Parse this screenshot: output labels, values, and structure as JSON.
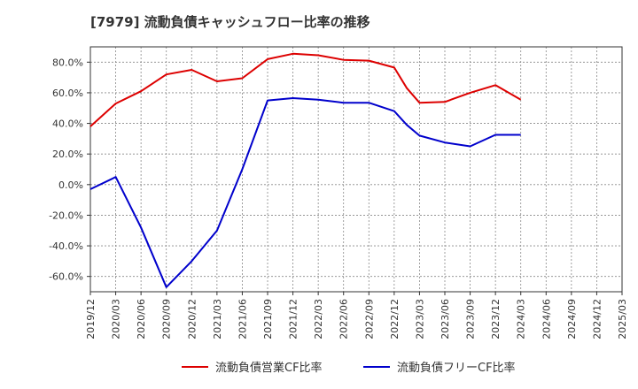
{
  "chart_data": {
    "type": "line",
    "title": "[7979]  流動負債キャッシュフロー比率の推移",
    "x": [
      "2019/12",
      "2020/03",
      "2020/06",
      "2020/09",
      "2020/12",
      "2021/03",
      "2021/06",
      "2021/09",
      "2021/12",
      "2022/03",
      "2022/06",
      "2022/09",
      "2022/12",
      "2023/03",
      "2023/06",
      "2023/09",
      "2023/12",
      "2024/03",
      "2024/06",
      "2024/09",
      "2024/12",
      "2025/03"
    ],
    "ylim": [
      -70,
      90
    ],
    "yticks": [
      -60,
      -40,
      -20,
      0,
      20,
      40,
      60,
      80
    ],
    "ytick_labels": [
      "-60.0%",
      "-40.0%",
      "-20.0%",
      "0.0%",
      "20.0%",
      "40.0%",
      "60.0%",
      "80.0%"
    ],
    "grid": true,
    "legend_position": "bottom",
    "series": [
      {
        "name": "流動負債営業CF比率",
        "color": "#dd0000",
        "values": [
          [
            0,
            38
          ],
          [
            1,
            53
          ],
          [
            2,
            61
          ],
          [
            3,
            72
          ],
          [
            4,
            75
          ],
          [
            5,
            67.5
          ],
          [
            6,
            69.5
          ],
          [
            7,
            82
          ],
          [
            8,
            85.5
          ],
          [
            9,
            84.5
          ],
          [
            10,
            81.5
          ],
          [
            11,
            81
          ],
          [
            12,
            76.5
          ],
          [
            12.5,
            63
          ],
          [
            13,
            53.5
          ],
          [
            14,
            54
          ],
          [
            15,
            60
          ],
          [
            16,
            65
          ],
          [
            17,
            55.5
          ]
        ]
      },
      {
        "name": "流動負債フリーCF比率",
        "color": "#0000cc",
        "values": [
          [
            0,
            -3
          ],
          [
            1,
            5
          ],
          [
            2,
            -28
          ],
          [
            3,
            -67
          ],
          [
            4,
            -50
          ],
          [
            5,
            -30
          ],
          [
            6,
            10
          ],
          [
            7,
            55
          ],
          [
            8,
            56.5
          ],
          [
            9,
            55.5
          ],
          [
            10,
            53.5
          ],
          [
            11,
            53.5
          ],
          [
            12,
            48
          ],
          [
            12.5,
            39
          ],
          [
            13,
            32
          ],
          [
            14,
            27.5
          ],
          [
            15,
            25
          ],
          [
            16,
            32.5
          ],
          [
            17,
            32.5
          ]
        ]
      }
    ]
  }
}
